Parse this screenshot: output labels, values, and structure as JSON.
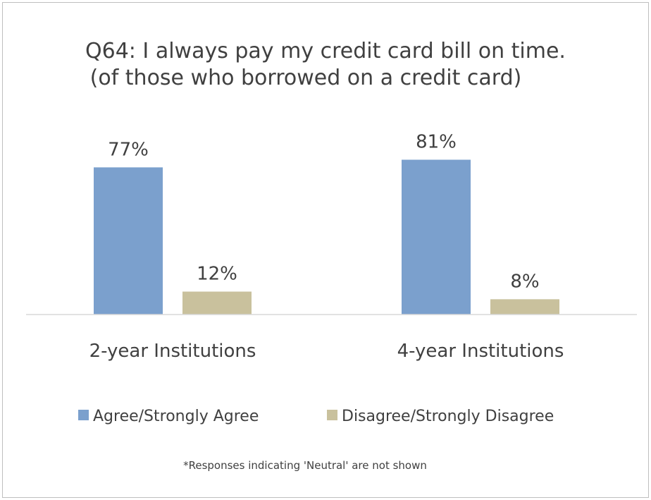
{
  "chart_data": {
    "type": "bar",
    "title": "Q64:  I always pay my credit card bill on time.",
    "subtitle": "(of those who borrowed on a credit card)",
    "categories": [
      "2-year Institutions",
      "4-year Institutions"
    ],
    "series": [
      {
        "name": "Agree/Strongly Agree",
        "values": [
          77,
          81
        ],
        "labels": [
          "77%",
          "81%"
        ],
        "color": "#7ba0cd"
      },
      {
        "name": "Disagree/Strongly Disagree",
        "values": [
          12,
          8
        ],
        "labels": [
          "12%",
          "8%"
        ],
        "color": "#c9c19d"
      }
    ],
    "ylim": [
      0,
      100
    ],
    "grid": false,
    "legend_position": "bottom",
    "footnote": "*Responses indicating 'Neutral' are not shown"
  }
}
